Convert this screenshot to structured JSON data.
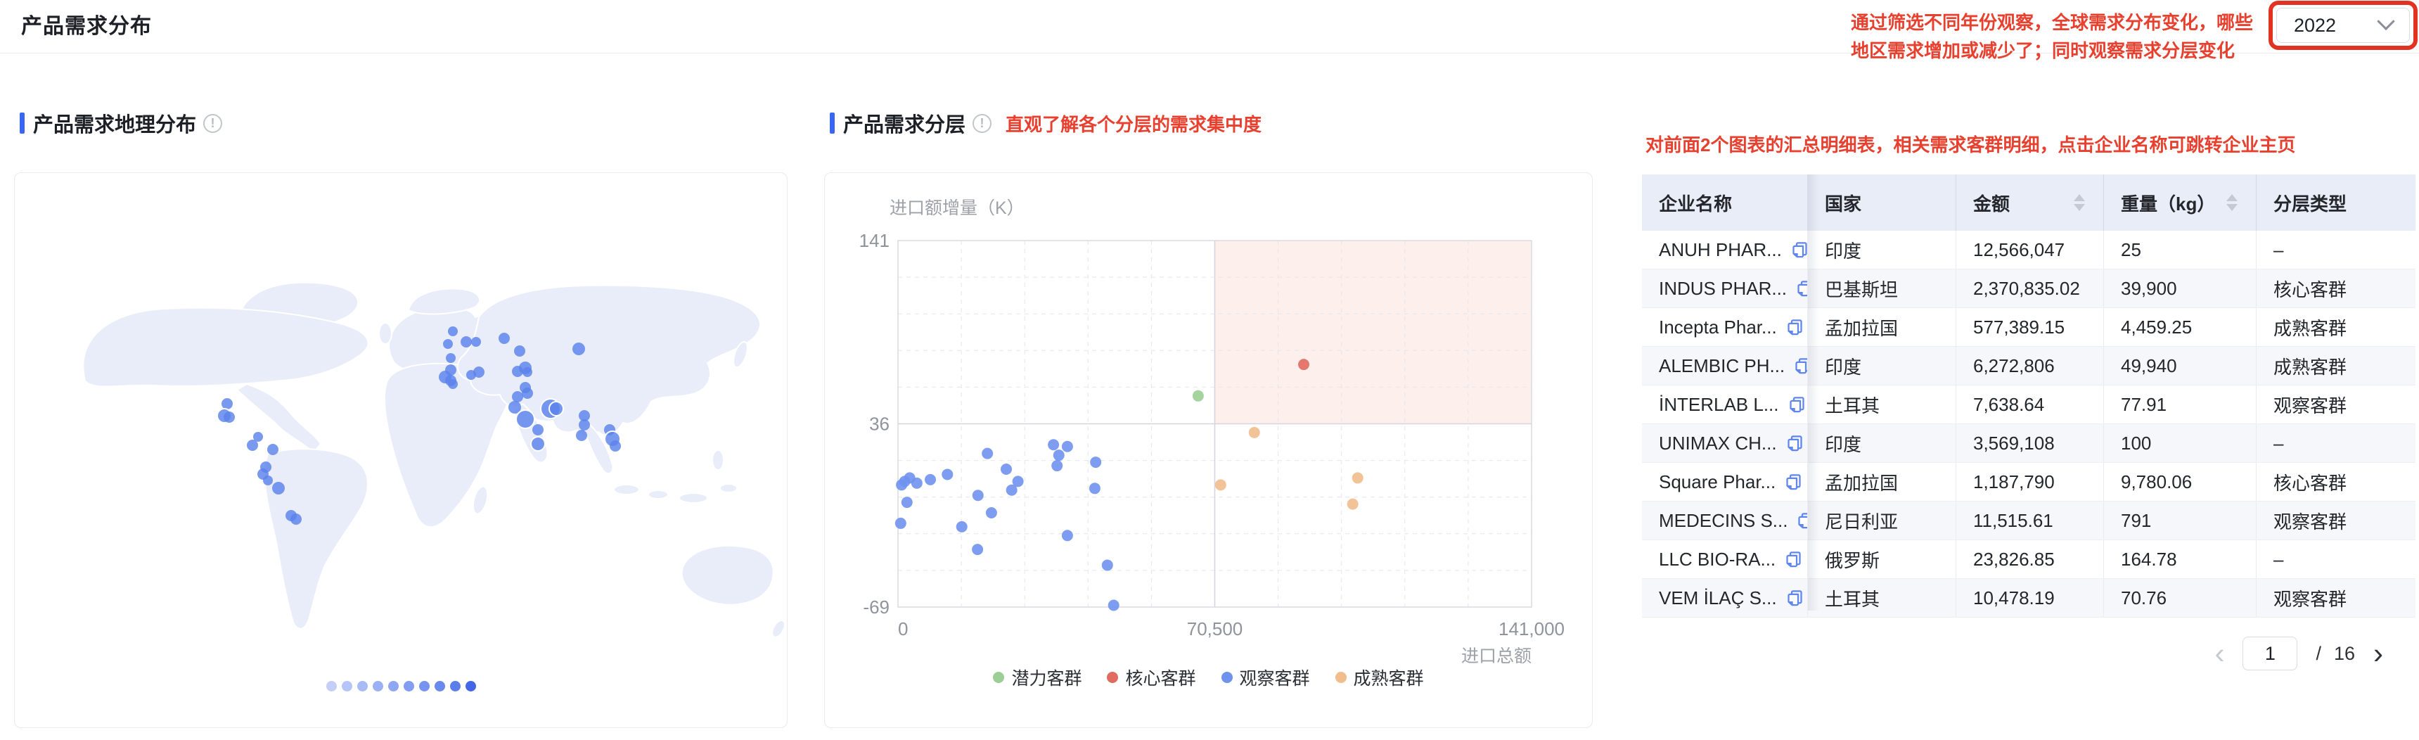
{
  "header": {
    "title": "产品需求分布",
    "year_value": "2022",
    "year_note": "通过筛选不同年份观察，全球需求分布变化，哪些地区需求增加或减少了；同时观察需求分层变化"
  },
  "geo_panel": {
    "title": "产品需求地理分布"
  },
  "layer_panel": {
    "title": "产品需求分层",
    "note": "直观了解各个分层的需求集中度"
  },
  "table_note": "对前面2个图表的汇总明细表，相关需求客群明细，点击企业名称可跳转企业主页",
  "chart_data": [
    {
      "id": "geo-bubble-map",
      "type": "bubble-map",
      "title": "产品需求地理分布",
      "legend": "10-step blue intensity scale, light to dark",
      "legend_colors": [
        "#c3cff8",
        "#b6c5f7",
        "#a9bbf6",
        "#9cb1f4",
        "#8fa7f3",
        "#829df1",
        "#7593ef",
        "#6889ed",
        "#5b7fe9",
        "#4468e5"
      ],
      "marker_color": "#5b83ec",
      "markers": [
        [
          623,
          225,
          7
        ],
        [
          642,
          240,
          8
        ],
        [
          656,
          240,
          7
        ],
        [
          696,
          235,
          8
        ],
        [
          616,
          243,
          7
        ],
        [
          718,
          253,
          8
        ],
        [
          802,
          250,
          9
        ],
        [
          620,
          263,
          7
        ],
        [
          620,
          280,
          8
        ],
        [
          660,
          283,
          8
        ],
        [
          649,
          287,
          7
        ],
        [
          612,
          290,
          9
        ],
        [
          620,
          295,
          8
        ],
        [
          623,
          300,
          7
        ],
        [
          715,
          282,
          8
        ],
        [
          726,
          277,
          9
        ],
        [
          729,
          283,
          7
        ],
        [
          726,
          305,
          8
        ],
        [
          729,
          313,
          8
        ],
        [
          715,
          318,
          8
        ],
        [
          711,
          333,
          9
        ],
        [
          762,
          335,
          14
        ],
        [
          770,
          335,
          10
        ],
        [
          726,
          350,
          13
        ],
        [
          810,
          345,
          8
        ],
        [
          810,
          358,
          8
        ],
        [
          744,
          365,
          8
        ],
        [
          806,
          373,
          8
        ],
        [
          744,
          385,
          10
        ],
        [
          846,
          365,
          8
        ],
        [
          850,
          378,
          11
        ],
        [
          854,
          388,
          8
        ],
        [
          302,
          328,
          8
        ],
        [
          298,
          345,
          10
        ],
        [
          305,
          347,
          8
        ],
        [
          346,
          375,
          7
        ],
        [
          338,
          387,
          8
        ],
        [
          367,
          393,
          8
        ],
        [
          357,
          418,
          8
        ],
        [
          353,
          428,
          8
        ],
        [
          360,
          437,
          7
        ],
        [
          375,
          448,
          9
        ],
        [
          393,
          487,
          8
        ],
        [
          400,
          492,
          8
        ]
      ]
    },
    {
      "id": "demand-scatter",
      "type": "scatter",
      "xlabel": "进口总额",
      "ylabel": "进口额增量（K）",
      "xlim": [
        0,
        141000
      ],
      "ylim": [
        -69,
        141
      ],
      "xticks": [
        "0",
        "70,500",
        "141,000"
      ],
      "yticks": [
        "141",
        "36",
        "-69"
      ],
      "grid": "dashed 10% steps, solid mid lines",
      "highlight_quadrant": {
        "x": [
          70500,
          141000
        ],
        "y": [
          36,
          141
        ],
        "color": "#fbe9e5"
      },
      "series": [
        {
          "name": "潜力客群",
          "color": "#9ccf95",
          "points": [
            [
              66800,
              52
            ]
          ]
        },
        {
          "name": "核心客群",
          "color": "#e16a61",
          "points": [
            [
              90300,
              70
            ]
          ]
        },
        {
          "name": "观察客群",
          "color": "#7092ef",
          "points": [
            [
              34600,
              24
            ],
            [
              37700,
              23
            ],
            [
              19900,
              19
            ],
            [
              35800,
              18
            ],
            [
              35400,
              12
            ],
            [
              44000,
              14
            ],
            [
              24100,
              10
            ],
            [
              7200,
              4
            ],
            [
              11000,
              7
            ],
            [
              800,
              1
            ],
            [
              2600,
              5
            ],
            [
              4200,
              2
            ],
            [
              1500,
              3
            ],
            [
              17800,
              -5
            ],
            [
              26700,
              3
            ],
            [
              25300,
              -2
            ],
            [
              43800,
              -1
            ],
            [
              2000,
              -9
            ],
            [
              20800,
              -15
            ],
            [
              600,
              -21
            ],
            [
              14200,
              -23
            ],
            [
              37700,
              -28
            ],
            [
              17700,
              -36
            ],
            [
              46600,
              -45
            ],
            [
              48000,
              -68
            ]
          ]
        },
        {
          "name": "成熟客群",
          "color": "#f2bd8d",
          "points": [
            [
              79300,
              31
            ],
            [
              71800,
              1
            ],
            [
              102300,
              5
            ],
            [
              101200,
              -10
            ]
          ]
        }
      ]
    }
  ],
  "table": {
    "columns": [
      {
        "label": "企业名称",
        "sortable": false
      },
      {
        "label": "国家",
        "sortable": false
      },
      {
        "label": "金额",
        "sortable": true
      },
      {
        "label": "重量（kg）",
        "sortable": true
      },
      {
        "label": "分层类型",
        "sortable": false
      }
    ],
    "rows": [
      {
        "company": "ANUH PHAR...",
        "country": "印度",
        "amount": "12,566,047",
        "weight": "25",
        "tier": "–"
      },
      {
        "company": "INDUS PHAR...",
        "country": "巴基斯坦",
        "amount": "2,370,835.02",
        "weight": "39,900",
        "tier": "核心客群"
      },
      {
        "company": "Incepta Phar...",
        "country": "孟加拉国",
        "amount": "577,389.15",
        "weight": "4,459.25",
        "tier": "成熟客群"
      },
      {
        "company": "ALEMBIC PH...",
        "country": "印度",
        "amount": "6,272,806",
        "weight": "49,940",
        "tier": "成熟客群"
      },
      {
        "company": "İNTERLAB L...",
        "country": "土耳其",
        "amount": "7,638.64",
        "weight": "77.91",
        "tier": "观察客群"
      },
      {
        "company": "UNIMAX CH...",
        "country": "印度",
        "amount": "3,569,108",
        "weight": "100",
        "tier": "–"
      },
      {
        "company": "Square Phar...",
        "country": "孟加拉国",
        "amount": "1,187,790",
        "weight": "9,780.06",
        "tier": "核心客群"
      },
      {
        "company": "MEDECINS S...",
        "country": "尼日利亚",
        "amount": "11,515.61",
        "weight": "791",
        "tier": "观察客群"
      },
      {
        "company": "LLC BIO-RA...",
        "country": "俄罗斯",
        "amount": "23,826.85",
        "weight": "164.78",
        "tier": "–"
      },
      {
        "company": "VEM İLAÇ S...",
        "country": "土耳其",
        "amount": "10,478.19",
        "weight": "70.76",
        "tier": "观察客群"
      }
    ]
  },
  "pagination": {
    "prev": "‹",
    "page": "1",
    "separator": "/",
    "total": "16",
    "next": "›"
  }
}
